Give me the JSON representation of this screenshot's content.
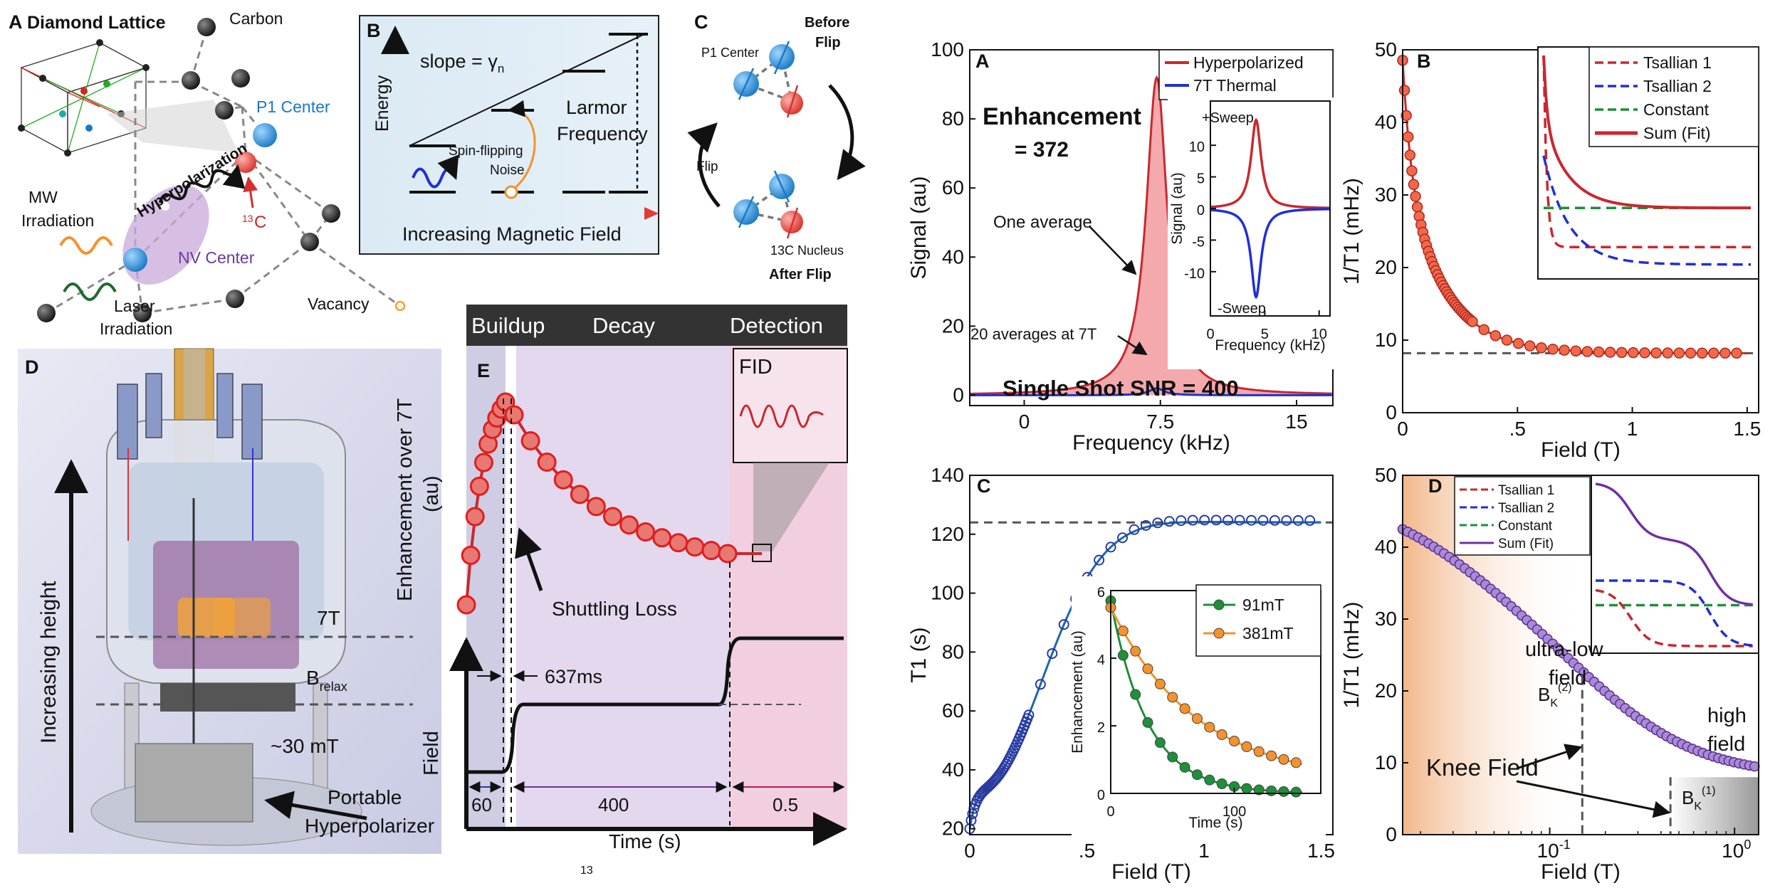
{
  "colors": {
    "hyper": "#c8282f",
    "hyperFill": "#f3a0a4",
    "thermal": "#1f2fd6",
    "t1blue": "#1a6aad",
    "t1marker": "#2a3aa0",
    "green": "#1e8f3a",
    "orange": "#f5922b",
    "purple": "#7030a0",
    "grayDash": "#555555",
    "buildup": "#cfcde3",
    "decay": "#e4d8ee",
    "detect": "#f1cfe0"
  },
  "left": {
    "A": {
      "letter": "A",
      "title": "Diamond Lattice",
      "carbon": "Carbon",
      "p1": "P1 Center",
      "hyperpol": "Hyperpolarization",
      "c13": "13C",
      "c13sup": "13",
      "c13base": "C",
      "mw1": "MW",
      "mw2": "Irradiation",
      "nv": "NV Center",
      "laser1": "Laser",
      "laser2": "Irradiation",
      "vacancy": "Vacancy"
    },
    "B": {
      "letter": "B",
      "slope": "slope = γ",
      "slopeSub": "n",
      "energy": "Energy",
      "larmor1": "Larmor",
      "larmor2": "Frequency",
      "noise1": "Spin-flipping",
      "noise2": "Noise",
      "xaxis": "Increasing Magnetic Field"
    },
    "C": {
      "letter": "C",
      "before1": "Before",
      "before2": "Flip",
      "p1": "P1 Center",
      "flip": "Flip",
      "nucleus": "13C Nucleus",
      "nucSup": "13",
      "nucBase": "C Nucleus",
      "after": "After Flip"
    },
    "D": {
      "letter": "D",
      "height": "Increasing height",
      "f7t": "7T",
      "brelax": "B",
      "brelaxSub": "relax",
      "mt30": "~30 mT",
      "port1": "Portable",
      "port2": "Hyperpolarizer"
    },
    "E": {
      "letter": "E",
      "buildup": "Buildup",
      "decay": "Decay",
      "detection": "Detection",
      "fid": "FID",
      "ylabel1": "Enhancement over 7T",
      "ylabel2": "(au)",
      "shuttling": "Shuttling Loss",
      "ms": "637ms",
      "field": "Field",
      "durations": [
        "60",
        "400",
        "0.5"
      ],
      "xlabel": "Time (s)"
    },
    "caption": "13"
  },
  "chart_data": [
    {
      "panel": "A",
      "type": "line",
      "title": "",
      "xlabel": "Frequency (kHz)",
      "ylabel": "Signal (au)",
      "xlim": [
        -3,
        17
      ],
      "ylim": [
        -3,
        100
      ],
      "xticks": [
        "0",
        "7.5",
        "15"
      ],
      "yticks": [
        "0",
        "20",
        "40",
        "60",
        "80",
        "100"
      ],
      "series": [
        {
          "name": "Hyperpolarized",
          "center": 7.3,
          "width": 0.7,
          "peak": 92
        },
        {
          "name": "7T Thermal",
          "center": 7.3,
          "width": 0.5,
          "peak": 2
        }
      ],
      "annotations": [
        "Enhancement",
        "= 372",
        "One average",
        "20 averages at 7T",
        "Single Shot SNR = 400"
      ],
      "inset": {
        "xlabel": "Frequency (kHz)",
        "ylabel": "Signal (au)",
        "xticks": [
          "0",
          "5",
          "10"
        ],
        "yticks": [
          "-10",
          "-5",
          "0",
          "5",
          "10"
        ],
        "labels": [
          "+Sweep",
          "-Sweep"
        ],
        "series": [
          {
            "name": "+Sweep",
            "center": 4.2,
            "peak": 14
          },
          {
            "name": "-Sweep",
            "center": 4.2,
            "peak": -14
          }
        ]
      }
    },
    {
      "panel": "B",
      "type": "scatter",
      "xlabel": "Field (T)",
      "ylabel": "1/T1 (mHz)",
      "xlim": [
        0,
        1.55
      ],
      "ylim": [
        0,
        50
      ],
      "xticks": [
        "0",
        ".5",
        "1",
        "1.5"
      ],
      "yticks": [
        "0",
        "10",
        "20",
        "30",
        "40",
        "50"
      ],
      "baseline": 8.2,
      "legend": [
        "Tsallian 1",
        "Tsallian 2",
        "Constant",
        "Sum (Fit)"
      ]
    },
    {
      "panel": "C",
      "type": "scatter",
      "xlabel": "Field (T)",
      "ylabel": "T1 (s)",
      "xlim": [
        0,
        1.55
      ],
      "ylim": [
        18,
        140
      ],
      "xticks": [
        "0",
        ".5",
        "1",
        "1.5"
      ],
      "yticks": [
        "20",
        "40",
        "60",
        "80",
        "100",
        "120",
        "140"
      ],
      "plateau": 124,
      "inset": {
        "xlabel": "Time (s)",
        "ylabel": "Enhancement (au)",
        "xticks": [
          "0",
          "100"
        ],
        "yticks": [
          "0",
          "2",
          "4",
          "6"
        ],
        "series": [
          {
            "name": "91mT",
            "tau": 30,
            "a0": 5.7
          },
          {
            "name": "381mT",
            "tau": 70,
            "a0": 5.2
          }
        ]
      }
    },
    {
      "panel": "D",
      "type": "scatter",
      "xlabel": "Field (T)",
      "ylabel": "1/T1 (mHz)",
      "xscale": "log",
      "ylim": [
        0,
        50
      ],
      "xticks": [
        "10-1",
        "100"
      ],
      "yticks": [
        "0",
        "10",
        "20",
        "30",
        "40",
        "50"
      ],
      "legend": [
        "Tsallian 1",
        "Tsallian 2",
        "Constant",
        "Sum (Fit)"
      ],
      "annotations": [
        "ultra-low",
        "field",
        "high",
        "field",
        "Knee Field",
        "BK(2)",
        "BK(1)"
      ]
    }
  ]
}
